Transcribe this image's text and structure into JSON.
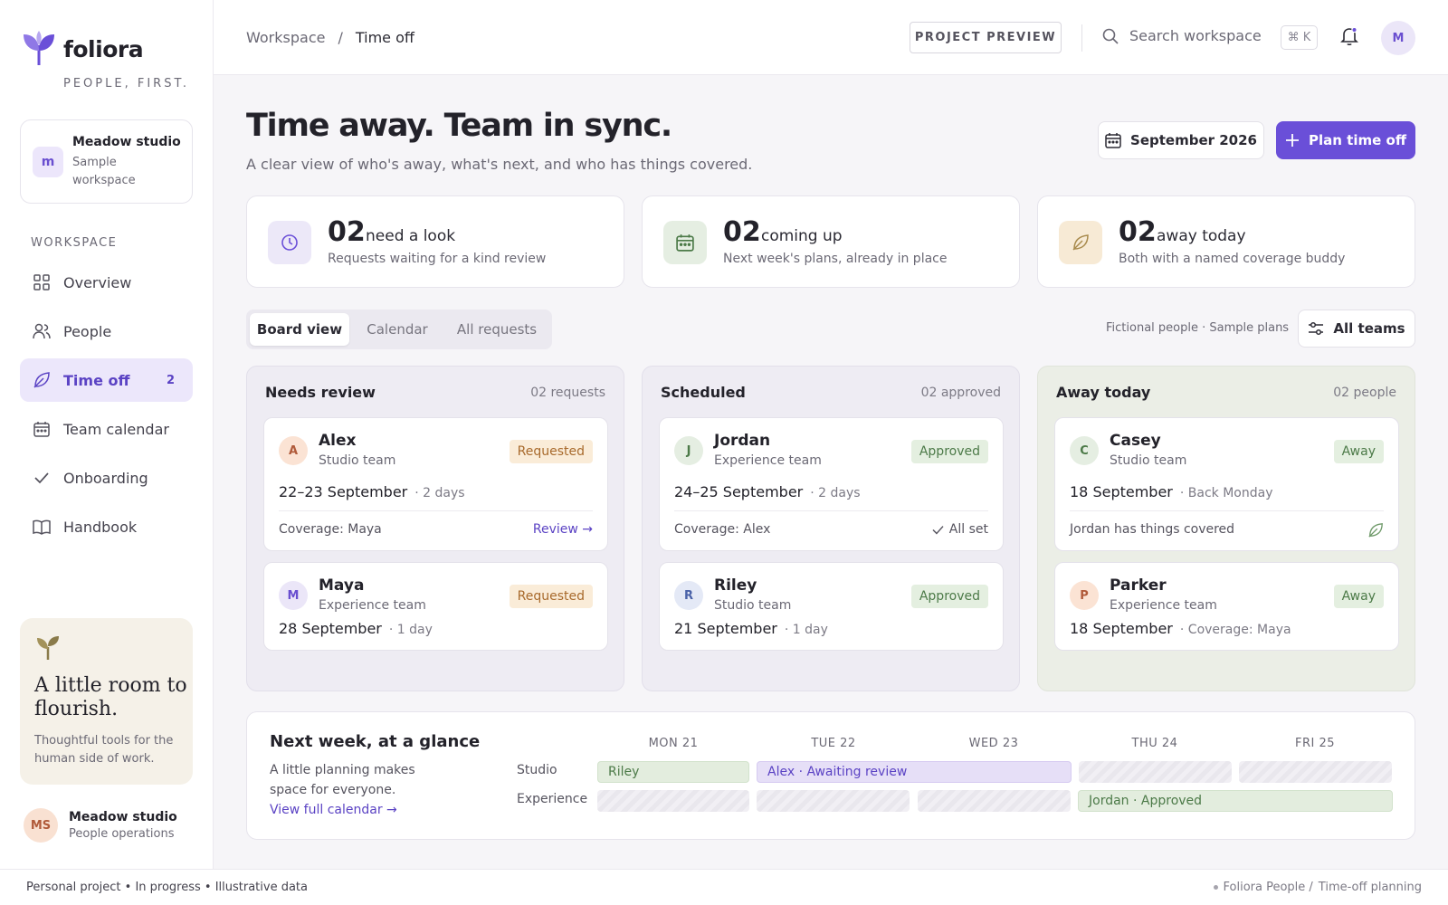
{
  "brand": {
    "name": "foliora",
    "tagline": "PEOPLE, FIRST."
  },
  "workspace_card": {
    "badge": "m",
    "name": "Meadow studio",
    "sub": "Sample workspace"
  },
  "sidebar": {
    "section_label": "WORKSPACE",
    "items": [
      {
        "label": "Overview",
        "icon": "grid-icon"
      },
      {
        "label": "People",
        "icon": "people-icon"
      },
      {
        "label": "Time off",
        "icon": "leaf-icon",
        "count": "2",
        "active": true
      },
      {
        "label": "Team calendar",
        "icon": "calendar-icon"
      },
      {
        "label": "Onboarding",
        "icon": "check-icon"
      },
      {
        "label": "Handbook",
        "icon": "book-icon"
      }
    ]
  },
  "promo": {
    "title": "A little room to flourish.",
    "text": "Thoughtful tools for the human side of work."
  },
  "footer_user": {
    "initials": "MS",
    "name": "Meadow studio",
    "role": "People operations"
  },
  "topbar": {
    "breadcrumb": [
      "Workspace",
      "/",
      "Time off"
    ],
    "preview_label": "PROJECT PREVIEW",
    "search_placeholder": "Search workspace",
    "shortcut": "⌘ K",
    "avatar": "M"
  },
  "header": {
    "title": "Time away. Team in sync.",
    "subtitle": "A clear view of who's away, what's next, and who has things covered.",
    "month": "September 2026",
    "plan_label": "Plan time off"
  },
  "stats": [
    {
      "num": "02",
      "label": "need a look",
      "desc": "Requests waiting for a kind review",
      "icon": "clock-icon"
    },
    {
      "num": "02",
      "label": "coming up",
      "desc": "Next week's plans, already in place",
      "icon": "calendar-icon"
    },
    {
      "num": "02",
      "label": "away today",
      "desc": "Both with a named coverage buddy",
      "icon": "leaf-icon"
    }
  ],
  "tabs": [
    "Board view",
    "Calendar",
    "All requests"
  ],
  "filter": {
    "note": "Fictional people · Sample plans",
    "teams_label": "All teams"
  },
  "columns": [
    {
      "title": "Needs review",
      "count": "02 requests",
      "cards": [
        {
          "initial": "A",
          "name": "Alex",
          "team": "Studio team",
          "badge": "Requested",
          "date": "22–23 September",
          "meta": "· 2 days",
          "coverage": "Coverage: Maya",
          "action": "Review →"
        },
        {
          "initial": "M",
          "name": "Maya",
          "team": "Experience team",
          "badge": "Requested",
          "date": "28 September",
          "meta": "· 1 day"
        }
      ]
    },
    {
      "title": "Scheduled",
      "count": "02 approved",
      "cards": [
        {
          "initial": "J",
          "name": "Jordan",
          "team": "Experience team",
          "badge": "Approved",
          "date": "24–25 September",
          "meta": "· 2 days",
          "coverage": "Coverage: Alex",
          "action": "All set"
        },
        {
          "initial": "R",
          "name": "Riley",
          "team": "Studio team",
          "badge": "Approved",
          "date": "21 September",
          "meta": "· 1 day"
        }
      ]
    },
    {
      "title": "Away today",
      "count": "02 people",
      "cards": [
        {
          "initial": "C",
          "name": "Casey",
          "team": "Studio team",
          "badge": "Away",
          "date": "18 September",
          "meta": "· Back Monday",
          "coverage": "Jordan has things covered"
        },
        {
          "initial": "P",
          "name": "Parker",
          "team": "Experience team",
          "badge": "Away",
          "date": "18 September",
          "meta": "· Coverage: Maya"
        }
      ]
    }
  ],
  "glance": {
    "title": "Next week, at a glance",
    "desc": "A little planning makes space for everyone.",
    "link": "View full calendar →",
    "days": [
      "MON 21",
      "TUE 22",
      "WED 23",
      "THU 24",
      "FRI 25"
    ],
    "rows": [
      "Studio",
      "Experience"
    ],
    "bars": {
      "riley": "Riley",
      "alex": "Alex · Awaiting review",
      "jordan": "Jordan · Approved"
    }
  },
  "footer": {
    "left": "Personal project • In progress • Illustrative data",
    "right_a": "Foliora People /",
    "right_b": "Time-off planning"
  },
  "colors": {
    "accent": "#6a4fd8",
    "requested": "#faecd8",
    "approved": "#e4efe0"
  }
}
